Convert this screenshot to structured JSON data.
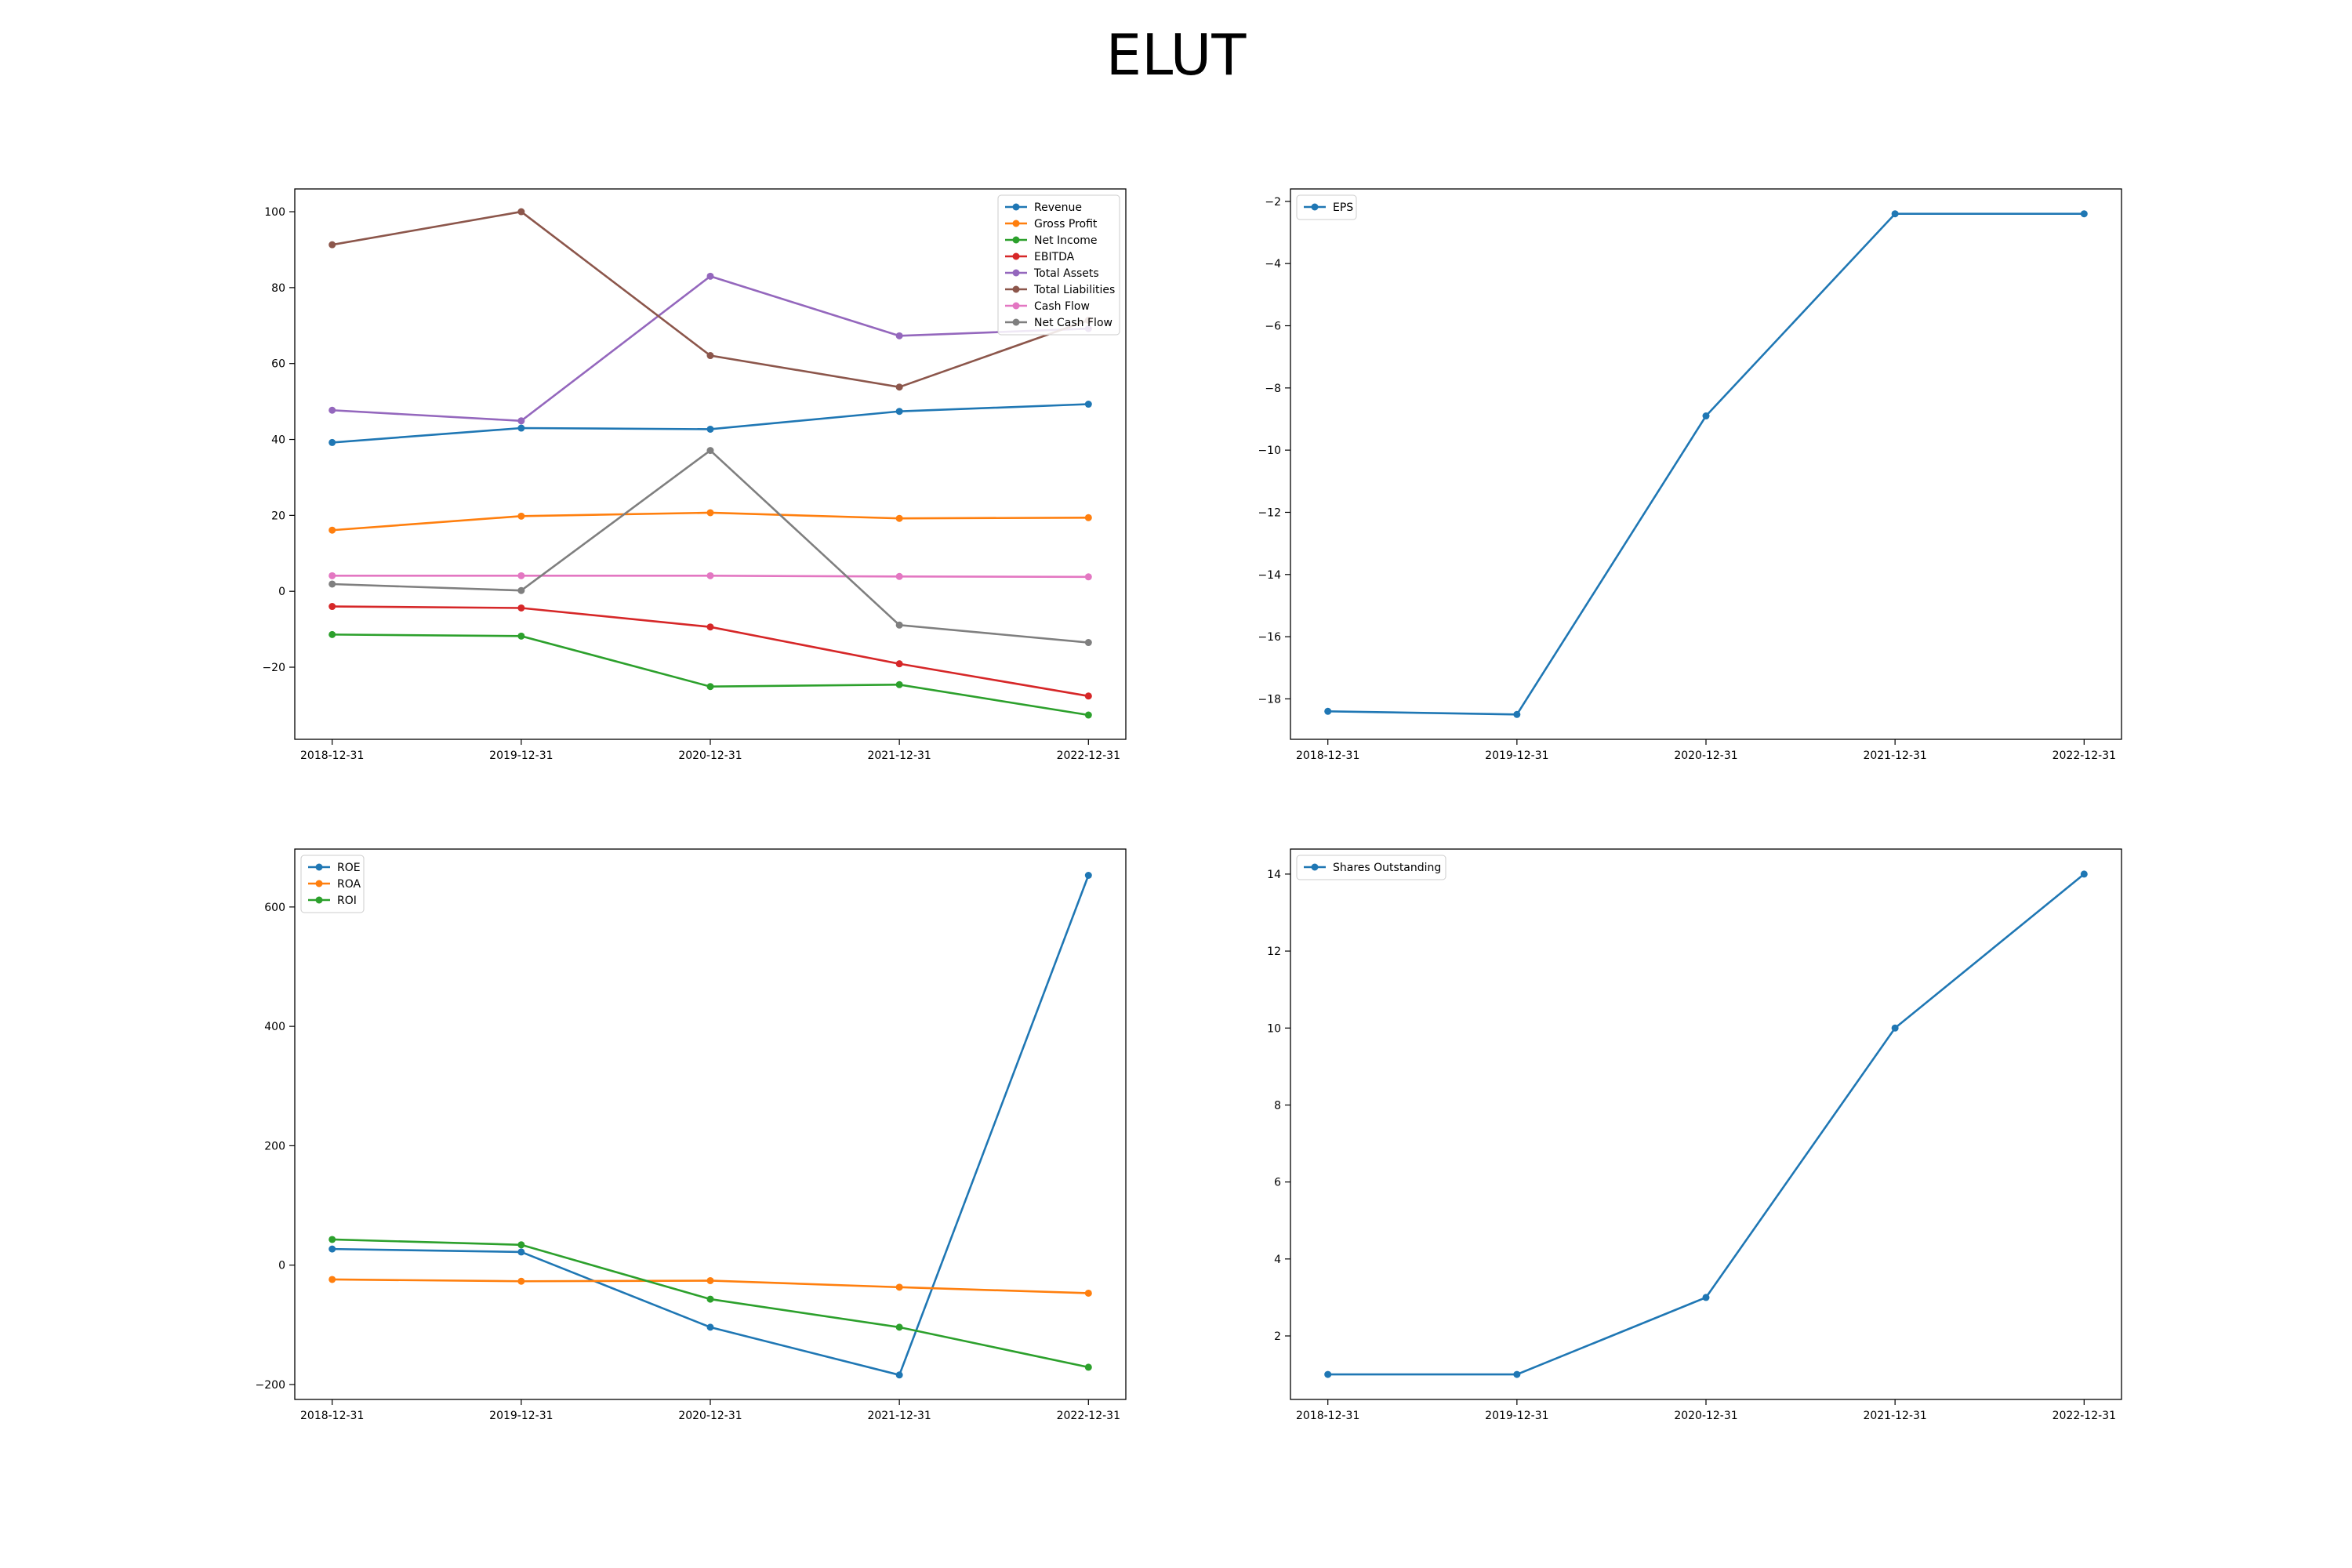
{
  "title": "ELUT",
  "chart_data": [
    {
      "type": "line",
      "categories": [
        "2018-12-31",
        "2019-12-31",
        "2020-12-31",
        "2021-12-31",
        "2022-12-31"
      ],
      "ylim": [
        -39,
        106
      ],
      "yticks": [
        -20,
        0,
        20,
        40,
        60,
        80,
        100
      ],
      "grid": false,
      "legend_position": "upper right",
      "series": [
        {
          "name": "Revenue",
          "color": "#1f77b4",
          "values": [
            39.2,
            43.0,
            42.7,
            47.4,
            49.3
          ]
        },
        {
          "name": "Gross Profit",
          "color": "#ff7f0e",
          "values": [
            16.1,
            19.8,
            20.7,
            19.2,
            19.4
          ]
        },
        {
          "name": "Net Income",
          "color": "#2ca02c",
          "values": [
            -11.4,
            -11.8,
            -25.1,
            -24.6,
            -32.6
          ]
        },
        {
          "name": "EBITDA",
          "color": "#d62728",
          "values": [
            -4.0,
            -4.4,
            -9.4,
            -19.1,
            -27.6
          ]
        },
        {
          "name": "Total Assets",
          "color": "#9467bd",
          "values": [
            47.7,
            44.9,
            83.0,
            67.3,
            69.2
          ]
        },
        {
          "name": "Total Liabilities",
          "color": "#8c564b",
          "values": [
            91.3,
            100.0,
            62.1,
            53.8,
            71.4
          ]
        },
        {
          "name": "Cash Flow",
          "color": "#e377c2",
          "values": [
            4.1,
            4.1,
            4.1,
            3.9,
            3.8
          ]
        },
        {
          "name": "Net Cash Flow",
          "color": "#7f7f7f",
          "values": [
            1.9,
            0.2,
            37.1,
            -8.9,
            -13.5
          ]
        }
      ]
    },
    {
      "type": "line",
      "categories": [
        "2018-12-31",
        "2019-12-31",
        "2020-12-31",
        "2021-12-31",
        "2022-12-31"
      ],
      "ylim": [
        -19.3,
        -1.6
      ],
      "yticks": [
        -18,
        -16,
        -14,
        -12,
        -10,
        -8,
        -6,
        -4,
        -2
      ],
      "grid": false,
      "legend_position": "upper left",
      "series": [
        {
          "name": "EPS",
          "color": "#1f77b4",
          "values": [
            -18.4,
            -18.5,
            -8.9,
            -2.4,
            -2.4
          ]
        }
      ]
    },
    {
      "type": "line",
      "categories": [
        "2018-12-31",
        "2019-12-31",
        "2020-12-31",
        "2021-12-31",
        "2022-12-31"
      ],
      "ylim": [
        -225,
        697
      ],
      "yticks": [
        -200,
        0,
        200,
        400,
        600
      ],
      "grid": false,
      "legend_position": "upper left",
      "series": [
        {
          "name": "ROE",
          "color": "#1f77b4",
          "values": [
            27,
            22,
            -104,
            -184,
            653
          ]
        },
        {
          "name": "ROA",
          "color": "#ff7f0e",
          "values": [
            -24,
            -27,
            -26,
            -37,
            -47
          ]
        },
        {
          "name": "ROI",
          "color": "#2ca02c",
          "values": [
            43,
            34,
            -57,
            -104,
            -171
          ]
        }
      ]
    },
    {
      "type": "line",
      "categories": [
        "2018-12-31",
        "2019-12-31",
        "2020-12-31",
        "2021-12-31",
        "2022-12-31"
      ],
      "ylim": [
        0.35,
        14.65
      ],
      "yticks": [
        2,
        4,
        6,
        8,
        10,
        12,
        14
      ],
      "grid": false,
      "legend_position": "upper left",
      "series": [
        {
          "name": "Shares Outstanding",
          "color": "#1f77b4",
          "values": [
            1,
            1,
            3,
            10,
            14
          ]
        }
      ]
    }
  ]
}
